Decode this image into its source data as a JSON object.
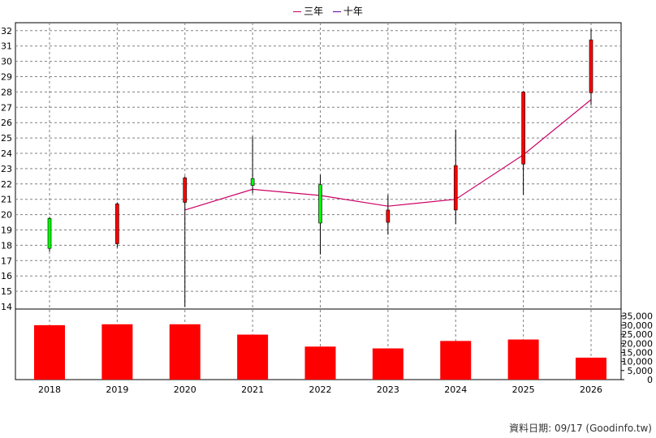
{
  "legend": {
    "items": [
      {
        "label": "三年",
        "color": "#cc0066"
      },
      {
        "label": "十年",
        "color": "#660099"
      }
    ]
  },
  "source_note": "資料日期: 09/17 (Goodinfo.tw)",
  "colors": {
    "up": "#ff0000",
    "down": "#00ff00",
    "bar": "#ff0000",
    "line_3y": "#cc0066",
    "grid": "#808080"
  },
  "chart_data": {
    "type": "candlestick+bar",
    "categories": [
      "2018",
      "2019",
      "2020",
      "2021",
      "2022",
      "2023",
      "2024",
      "2025",
      "2026"
    ],
    "price_axis": {
      "ylim": [
        14,
        32.5
      ],
      "ticks": [
        14,
        15,
        16,
        17,
        18,
        19,
        20,
        21,
        22,
        23,
        24,
        25,
        26,
        27,
        28,
        29,
        30,
        31,
        32
      ]
    },
    "candles": [
      {
        "year": "2018",
        "open": 19.75,
        "close": 17.8,
        "high": 19.85,
        "low": 17.6
      },
      {
        "year": "2019",
        "open": 18.1,
        "close": 20.7,
        "high": 20.8,
        "low": 17.85
      },
      {
        "year": "2020",
        "open": 20.8,
        "close": 22.4,
        "high": 22.5,
        "low": 14.0
      },
      {
        "year": "2021",
        "open": 22.35,
        "close": 21.9,
        "high": 25.1,
        "low": 21.4
      },
      {
        "year": "2022",
        "open": 21.95,
        "close": 19.45,
        "high": 22.6,
        "low": 17.4
      },
      {
        "year": "2023",
        "open": 19.5,
        "close": 20.3,
        "high": 21.3,
        "low": 18.7
      },
      {
        "year": "2024",
        "open": 20.3,
        "close": 23.2,
        "high": 25.55,
        "low": 19.4
      },
      {
        "year": "2025",
        "open": 23.3,
        "close": 28.0,
        "high": 28.05,
        "low": 21.3
      },
      {
        "year": "2026",
        "open": 27.95,
        "close": 31.4,
        "high": 32.1,
        "low": 27.15
      }
    ],
    "series": [
      {
        "name": "三年",
        "x": [
          "2020",
          "2021",
          "2022",
          "2023",
          "2024",
          "2025",
          "2026"
        ],
        "values": [
          20.3,
          21.65,
          21.25,
          20.55,
          21.0,
          23.9,
          27.5
        ]
      }
    ],
    "volume_axis": {
      "ylim": [
        0,
        38000
      ],
      "ticks": [
        0,
        5000,
        10000,
        15000,
        20000,
        25000,
        30000,
        35000
      ],
      "tick_labels": [
        "0",
        "5,000",
        "10,000",
        "15,000",
        "20,000",
        "25,000",
        "30,000",
        "35,000"
      ]
    },
    "volume": [
      30000,
      30500,
      30500,
      24800,
      18200,
      17200,
      21300,
      22100,
      12100
    ]
  }
}
